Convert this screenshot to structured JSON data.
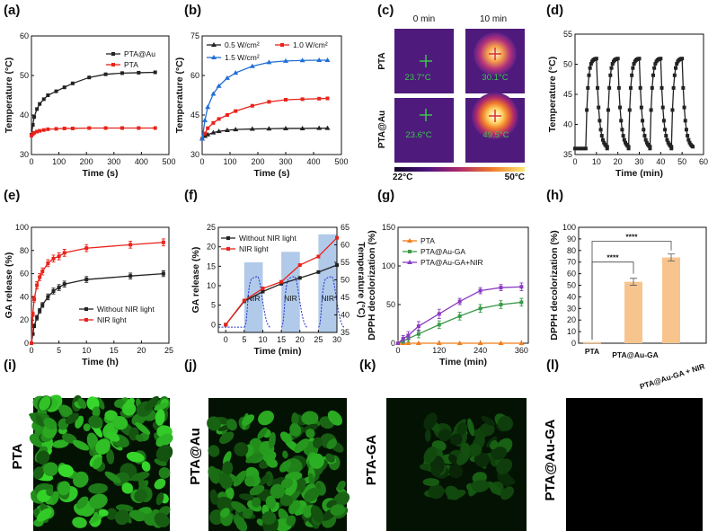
{
  "panels": {
    "a": "(a)",
    "b": "(b)",
    "c": "(c)",
    "d": "(d)",
    "e": "(e)",
    "f": "(f)",
    "g": "(g)",
    "h": "(h)",
    "i": "(i)",
    "j": "(j)",
    "k": "(k)",
    "l": "(l)"
  },
  "thermal": {
    "col_0min": "0 min",
    "col_10min": "10 min",
    "row_pta": "PTA",
    "row_ptaau": "PTA@Au",
    "readings": [
      "23.7°C",
      "30.1°C",
      "23.6°C",
      "49.5°C"
    ],
    "scale_min": "22°C",
    "scale_max": "50°C"
  },
  "fluor": {
    "label_i": "PTA",
    "label_j": "PTA@Au",
    "label_k": "PTA-GA",
    "label_l": "PTA@Au-GA"
  },
  "colors": {
    "black": "#222222",
    "red": "#e8231a",
    "blue": "#1f6fd6",
    "green": "#3a9a48",
    "orange": "#f07d1a",
    "purple": "#8a3cc2",
    "bar": "#f8c48d",
    "nirband": "#a9c4e8"
  },
  "chart_data": [
    {
      "id": "a",
      "type": "line",
      "xlabel": "Time (s)",
      "ylabel": "Temperature (°C)",
      "xlim": [
        0,
        500
      ],
      "ylim": [
        30,
        60
      ],
      "xticks": [
        0,
        100,
        200,
        300,
        400,
        500
      ],
      "yticks": [
        30,
        40,
        50,
        60
      ],
      "legend": [
        "PTA@Au",
        "PTA"
      ],
      "series": [
        {
          "name": "PTA@Au",
          "color": "#222222",
          "x": [
            0,
            5,
            10,
            20,
            30,
            45,
            60,
            90,
            120,
            150,
            210,
            270,
            330,
            390,
            450
          ],
          "y": [
            35,
            37.5,
            39.5,
            41.5,
            42.8,
            44,
            45,
            46,
            47,
            48,
            49.5,
            50.3,
            50.6,
            50.7,
            50.8
          ]
        },
        {
          "name": "PTA",
          "color": "#e8231a",
          "x": [
            0,
            5,
            10,
            20,
            30,
            45,
            60,
            90,
            120,
            150,
            210,
            270,
            330,
            390,
            450
          ],
          "y": [
            34.8,
            35.2,
            35.5,
            35.8,
            36,
            36.2,
            36.4,
            36.5,
            36.6,
            36.6,
            36.7,
            36.7,
            36.7,
            36.7,
            36.7
          ]
        }
      ]
    },
    {
      "id": "b",
      "type": "line",
      "xlabel": "Time (s)",
      "ylabel": "Temperature (°C)",
      "xlim": [
        0,
        500
      ],
      "ylim": [
        30,
        75
      ],
      "xticks": [
        0,
        100,
        200,
        300,
        400,
        500
      ],
      "yticks": [
        30,
        45,
        60,
        75
      ],
      "legend": [
        "0.5 W/cm²",
        "1.0 W/cm²",
        "1.5 W/cm²"
      ],
      "series": [
        {
          "name": "0.5 W/cm²",
          "color": "#222222",
          "x": [
            0,
            10,
            20,
            40,
            60,
            90,
            120,
            180,
            240,
            300,
            360,
            420,
            450
          ],
          "y": [
            36,
            37,
            37.6,
            38.3,
            38.8,
            39.2,
            39.5,
            39.7,
            39.8,
            39.9,
            39.9,
            40,
            40
          ]
        },
        {
          "name": "1.0 W/cm²",
          "color": "#e8231a",
          "x": [
            0,
            10,
            20,
            40,
            60,
            90,
            120,
            180,
            240,
            300,
            360,
            420,
            450
          ],
          "y": [
            36,
            38,
            40,
            42,
            43.5,
            45,
            46.5,
            48.5,
            50,
            50.8,
            51,
            51.2,
            51.3
          ]
        },
        {
          "name": "1.5 W/cm²",
          "color": "#1f6fd6",
          "x": [
            0,
            10,
            20,
            40,
            60,
            90,
            120,
            180,
            240,
            300,
            360,
            420,
            450
          ],
          "y": [
            36,
            43,
            48,
            53,
            56,
            59,
            61,
            63.5,
            65,
            65.5,
            65.7,
            65.8,
            65.8
          ]
        }
      ]
    },
    {
      "id": "d",
      "type": "line",
      "xlabel": "Time (min)",
      "ylabel": "Temperature (°C)",
      "xlim": [
        0,
        60
      ],
      "ylim": [
        35,
        55
      ],
      "xticks": [
        0,
        10,
        20,
        30,
        40,
        50,
        60
      ],
      "yticks": [
        35,
        40,
        45,
        50,
        55
      ],
      "cycles": {
        "count": 5,
        "period_min": 10,
        "heat_min": 5,
        "base": 36,
        "peak": 51
      }
    },
    {
      "id": "e",
      "type": "line",
      "xlabel": "Time (h)",
      "ylabel": "GA release (%)",
      "xlim": [
        0,
        25
      ],
      "ylim": [
        0,
        100
      ],
      "xticks": [
        0,
        5,
        10,
        15,
        20,
        25
      ],
      "yticks": [
        0,
        20,
        40,
        60,
        80,
        100
      ],
      "legend": [
        "Without NIR light",
        "NIR light"
      ],
      "series": [
        {
          "name": "Without NIR light",
          "color": "#222222",
          "x": [
            0,
            0.25,
            0.5,
            1,
            1.5,
            2,
            3,
            4,
            5,
            6,
            10,
            18,
            24
          ],
          "y": [
            0,
            8,
            15,
            22,
            28,
            33,
            40,
            45,
            48,
            51,
            55,
            58,
            60
          ],
          "err": [
            0,
            1,
            1.5,
            2,
            2,
            2,
            2.5,
            2.5,
            2.5,
            2.5,
            2.5,
            2.5,
            2.5
          ]
        },
        {
          "name": "NIR light",
          "color": "#e8231a",
          "x": [
            0,
            0.25,
            0.5,
            1,
            1.5,
            2,
            3,
            4,
            5,
            6,
            10,
            18,
            24
          ],
          "y": [
            0,
            25,
            38,
            50,
            57,
            62,
            69,
            73,
            75,
            78,
            82,
            85,
            87
          ],
          "err": [
            0,
            2,
            2.5,
            3,
            3,
            3,
            3,
            3,
            3,
            3,
            3,
            3,
            3
          ]
        }
      ]
    },
    {
      "id": "f",
      "type": "line",
      "xlabel": "Time (min)",
      "ylabel": "GA release (%)",
      "ylabel_right": "Temperature (°C)",
      "xlim": [
        -2,
        30
      ],
      "ylim": [
        -2,
        25
      ],
      "ylim_right": [
        35,
        65
      ],
      "xticks": [
        0,
        5,
        10,
        15,
        20,
        25,
        30
      ],
      "yticks": [
        0,
        5,
        10,
        15,
        20,
        25
      ],
      "yticks_right": [
        35,
        40,
        45,
        50,
        55,
        60,
        65
      ],
      "legend": [
        "Without NIR light",
        "NIR light"
      ],
      "band_label": "NIR",
      "nir_bands": [
        [
          5,
          10
        ],
        [
          15,
          20
        ],
        [
          25,
          30
        ]
      ],
      "series": [
        {
          "name": "Without NIR light",
          "color": "#222222",
          "x": [
            0,
            5,
            10,
            15,
            20,
            25,
            30
          ],
          "y": [
            0,
            6,
            8.5,
            10.5,
            12,
            13.5,
            15.3
          ]
        },
        {
          "name": "NIR light",
          "color": "#e8231a",
          "x": [
            0,
            5,
            10,
            15,
            20,
            25,
            30
          ],
          "y": [
            0,
            6.2,
            9.3,
            11,
            15.3,
            17.5,
            22.3
          ]
        }
      ]
    },
    {
      "id": "g",
      "type": "line",
      "xlabel": "Time (min)",
      "ylabel": "DPPH decolorization (%)",
      "xlim": [
        0,
        380
      ],
      "ylim": [
        0,
        150
      ],
      "xticks": [
        0,
        120,
        240,
        360
      ],
      "yticks": [
        0,
        50,
        100,
        150
      ],
      "legend": [
        "PTA",
        "PTA@Au-GA",
        "PTA@Au-GA+NIR"
      ],
      "series": [
        {
          "name": "PTA",
          "color": "#f07d1a",
          "x": [
            0,
            15,
            30,
            60,
            120,
            180,
            240,
            300,
            360
          ],
          "y": [
            0,
            0,
            0,
            0,
            0,
            0,
            0,
            0,
            0
          ]
        },
        {
          "name": "PTA@Au-GA",
          "color": "#3a9a48",
          "x": [
            0,
            15,
            30,
            60,
            120,
            180,
            240,
            300,
            360
          ],
          "y": [
            0,
            3,
            6,
            12,
            24,
            35,
            45,
            50,
            53
          ],
          "err": [
            0,
            3,
            4,
            5,
            5,
            5,
            5,
            5,
            5
          ]
        },
        {
          "name": "PTA@Au-GA+NIR",
          "color": "#8a3cc2",
          "x": [
            0,
            15,
            30,
            60,
            120,
            180,
            240,
            300,
            360
          ],
          "y": [
            0,
            6,
            10,
            22,
            38,
            54,
            68,
            72,
            73
          ],
          "err": [
            0,
            4,
            5,
            6,
            6,
            4,
            4,
            4,
            5
          ]
        }
      ]
    },
    {
      "id": "h",
      "type": "bar",
      "xlabel": "",
      "ylabel": "DPPH decolorization (%)",
      "ylim": [
        0,
        100
      ],
      "yticks": [
        0,
        10,
        20,
        30,
        40,
        50,
        60,
        70,
        80,
        90,
        100
      ],
      "categories": [
        "PTA",
        "PTA@Au-GA",
        "PTA@Au-GA + NIR"
      ],
      "values": [
        0,
        53,
        74
      ],
      "errors": [
        0,
        3,
        3
      ],
      "significance": [
        {
          "from": 0,
          "to": 1,
          "label": "****"
        },
        {
          "from": 0,
          "to": 2,
          "label": "****"
        }
      ]
    }
  ]
}
